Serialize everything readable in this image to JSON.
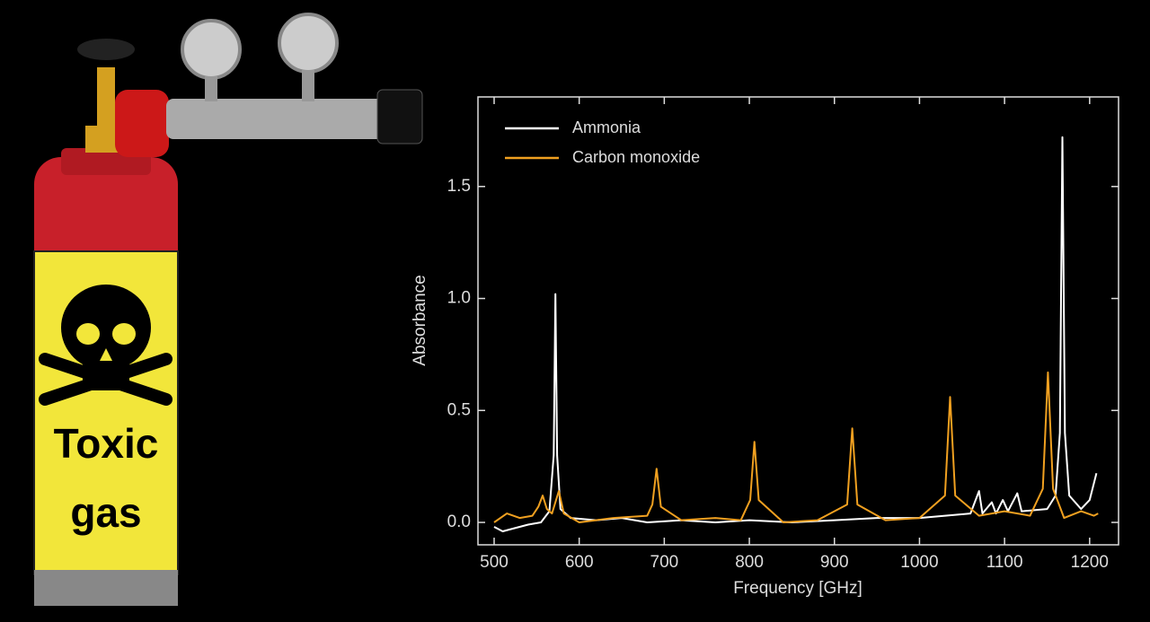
{
  "illustration": {
    "sign": [
      "Toxic",
      "gas"
    ]
  },
  "chart_data": {
    "type": "line",
    "x_label": "Frequency [GHz]",
    "y_label": "Absorbance",
    "xlim": [
      481,
      1234
    ],
    "ylim": [
      -0.1,
      1.9
    ],
    "xticks": [
      500,
      600,
      700,
      800,
      900,
      1000,
      1100,
      1200
    ],
    "yticks": [
      {
        "value": 0,
        "label": "0.0"
      },
      0.5,
      {
        "value": 1,
        "label": "1.0"
      },
      1.5
    ],
    "legend": "upper left",
    "series": [
      {
        "name": "Ammonia",
        "color": "#ffffff",
        "x": [
          500,
          510,
          520,
          540,
          555,
          565,
          570,
          572,
          574,
          578,
          590,
          620,
          650,
          680,
          720,
          760,
          800,
          850,
          900,
          950,
          1000,
          1030,
          1060,
          1070,
          1074,
          1085,
          1090,
          1098,
          1104,
          1115,
          1120,
          1150,
          1160,
          1165,
          1168,
          1171,
          1176,
          1190,
          1200,
          1208
        ],
        "values": [
          -0.02,
          -0.04,
          -0.03,
          -0.01,
          0.0,
          0.05,
          0.3,
          1.02,
          0.3,
          0.06,
          0.02,
          0.01,
          0.02,
          0.0,
          0.01,
          0.0,
          0.01,
          0.0,
          0.01,
          0.02,
          0.02,
          0.03,
          0.04,
          0.14,
          0.04,
          0.09,
          0.04,
          0.1,
          0.05,
          0.13,
          0.05,
          0.06,
          0.12,
          0.4,
          1.72,
          0.4,
          0.12,
          0.06,
          0.1,
          0.22
        ]
      },
      {
        "name": "Carbon monoxide",
        "color": "#f0a020",
        "x": [
          500,
          515,
          530,
          545,
          552,
          557,
          562,
          568,
          576,
          582,
          600,
          640,
          680,
          686,
          691,
          696,
          720,
          760,
          790,
          801,
          806,
          811,
          840,
          880,
          915,
          921,
          927,
          960,
          1000,
          1030,
          1036,
          1042,
          1070,
          1100,
          1130,
          1145,
          1151,
          1157,
          1170,
          1190,
          1205,
          1210
        ],
        "values": [
          0.0,
          0.04,
          0.02,
          0.03,
          0.07,
          0.12,
          0.06,
          0.04,
          0.14,
          0.04,
          0.0,
          0.02,
          0.03,
          0.08,
          0.24,
          0.07,
          0.01,
          0.02,
          0.01,
          0.1,
          0.36,
          0.1,
          0.0,
          0.01,
          0.08,
          0.42,
          0.08,
          0.01,
          0.02,
          0.12,
          0.56,
          0.12,
          0.03,
          0.05,
          0.03,
          0.15,
          0.67,
          0.15,
          0.02,
          0.05,
          0.03,
          0.04
        ]
      }
    ]
  }
}
